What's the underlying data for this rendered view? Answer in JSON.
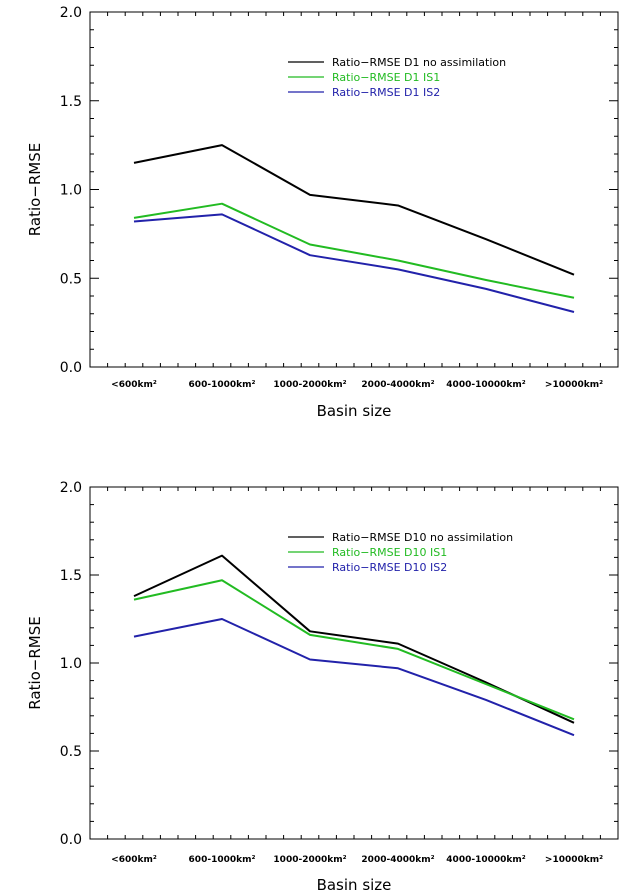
{
  "chart_data": [
    {
      "type": "line",
      "title": "",
      "xlabel": "Basin size",
      "ylabel": "Ratio−RMSE",
      "ylim": [
        0,
        2
      ],
      "yticks": [
        "0.0",
        "0.5",
        "1.0",
        "1.5",
        "2.0"
      ],
      "categories": [
        "<600km²",
        "600-1000km²",
        "1000-2000km²",
        "2000-4000km²",
        "4000-10000km²",
        ">10000km²"
      ],
      "legend_position": "top-right",
      "series": [
        {
          "name": "Ratio−RMSE D1 no assimilation",
          "color": "#000000",
          "values": [
            1.15,
            1.25,
            0.97,
            0.91,
            0.72,
            0.52
          ]
        },
        {
          "name": "Ratio−RMSE D1 IS1",
          "color": "#22bb22",
          "values": [
            0.84,
            0.92,
            0.69,
            0.6,
            0.49,
            0.39
          ]
        },
        {
          "name": "Ratio−RMSE D1 IS2",
          "color": "#2222aa",
          "values": [
            0.82,
            0.86,
            0.63,
            0.55,
            0.44,
            0.31
          ]
        }
      ]
    },
    {
      "type": "line",
      "title": "",
      "xlabel": "Basin size",
      "ylabel": "Ratio−RMSE",
      "ylim": [
        0,
        2
      ],
      "yticks": [
        "0.0",
        "0.5",
        "1.0",
        "1.5",
        "2.0"
      ],
      "categories": [
        "<600km²",
        "600-1000km²",
        "1000-2000km²",
        "2000-4000km²",
        "4000-10000km²",
        ">10000km²"
      ],
      "legend_position": "top-right",
      "series": [
        {
          "name": "Ratio−RMSE D10 no assimilation",
          "color": "#000000",
          "values": [
            1.38,
            1.61,
            1.18,
            1.11,
            0.89,
            0.66
          ]
        },
        {
          "name": "Ratio−RMSE D10 IS1",
          "color": "#22bb22",
          "values": [
            1.36,
            1.47,
            1.16,
            1.08,
            0.88,
            0.68
          ]
        },
        {
          "name": "Ratio−RMSE D10 IS2",
          "color": "#2222aa",
          "values": [
            1.15,
            1.25,
            1.02,
            0.97,
            0.79,
            0.59
          ]
        }
      ]
    }
  ]
}
